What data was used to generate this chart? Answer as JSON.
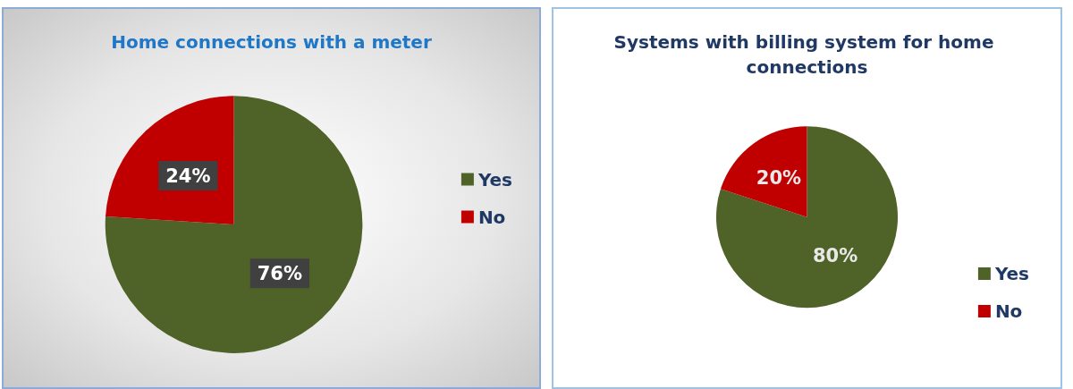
{
  "chart_data": [
    {
      "type": "pie",
      "title": "Home connections with a meter",
      "categories": [
        "Yes",
        "No"
      ],
      "values": [
        76,
        24
      ],
      "colors": [
        "#4f6228",
        "#c00000"
      ],
      "value_labels": [
        "76%",
        "24%"
      ],
      "legend": "right"
    },
    {
      "type": "pie",
      "title": "Systems with billing system for home connections",
      "categories": [
        "Yes",
        "No"
      ],
      "values": [
        80,
        20
      ],
      "colors": [
        "#4f6228",
        "#c00000"
      ],
      "value_labels": [
        "80%",
        "20%"
      ],
      "legend": "bottom right"
    }
  ]
}
